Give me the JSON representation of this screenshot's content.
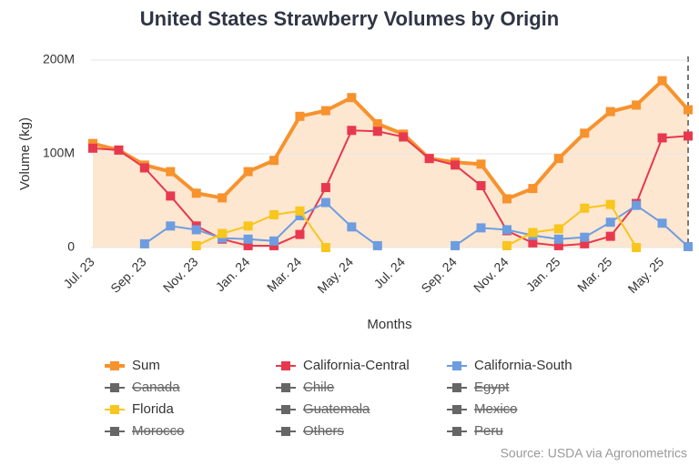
{
  "chart_data": {
    "type": "line",
    "title": "United States Strawberry Volumes by Origin",
    "x_label": "Months",
    "y_label": "Volume (kg)",
    "source": "Source: USDA via Agronometrics",
    "categories": [
      "Jul. 23",
      null,
      "Sep. 23",
      null,
      "Nov. 23",
      null,
      "Jan. 24",
      null,
      "Mar. 24",
      null,
      "May. 24",
      null,
      "Jul. 24",
      null,
      "Sep. 24",
      null,
      "Nov. 24",
      null,
      "Jan. 25",
      null,
      "Mar. 25",
      null,
      "May. 25",
      null
    ],
    "ylim": [
      0,
      200000000
    ],
    "yticks": [
      0,
      {
        "value": 100000000,
        "label": "100M"
      },
      {
        "value": 200000000,
        "label": "200M"
      }
    ],
    "grid": true,
    "series": [
      {
        "name": "Sum",
        "color": "#f7922d",
        "area": true,
        "values": [
          111000000,
          104000000,
          88000000,
          81000000,
          58000000,
          53000000,
          81000000,
          93000000,
          140000000,
          146000000,
          160000000,
          132000000,
          121000000,
          95000000,
          91000000,
          89000000,
          52000000,
          63000000,
          95000000,
          122000000,
          145000000,
          152000000,
          178000000,
          147000000
        ]
      },
      {
        "name": "California-Central",
        "color": "#e8384f",
        "values": [
          106000000,
          104000000,
          85000000,
          55000000,
          23000000,
          9000000,
          2000000,
          2000000,
          14000000,
          64000000,
          125000000,
          124000000,
          118000000,
          95000000,
          88000000,
          66000000,
          18000000,
          5000000,
          2000000,
          4000000,
          12000000,
          47000000,
          117000000,
          119000000
        ]
      },
      {
        "name": "California-South",
        "color": "#6d9de0",
        "values": [
          null,
          null,
          4000000,
          23000000,
          19000000,
          10000000,
          9000000,
          7000000,
          34000000,
          48000000,
          22000000,
          2000000,
          null,
          null,
          2000000,
          21000000,
          19000000,
          13000000,
          9000000,
          11000000,
          27000000,
          45000000,
          26000000,
          1000000
        ]
      },
      {
        "name": "Canada",
        "color": "#666666",
        "visible": false
      },
      {
        "name": "Chile",
        "color": "#666666",
        "visible": false
      },
      {
        "name": "Egypt",
        "color": "#666666",
        "visible": false
      },
      {
        "name": "Florida",
        "color": "#f8c61c",
        "values": [
          null,
          null,
          null,
          null,
          2000000,
          15000000,
          23000000,
          35000000,
          39000000,
          0,
          null,
          null,
          null,
          null,
          null,
          null,
          2000000,
          16000000,
          20000000,
          42000000,
          46000000,
          0,
          null,
          null
        ]
      },
      {
        "name": "Guatemala",
        "color": "#666666",
        "visible": false
      },
      {
        "name": "Mexico",
        "color": "#666666",
        "visible": false
      },
      {
        "name": "Morocco",
        "color": "#666666",
        "visible": false
      },
      {
        "name": "Others",
        "color": "#666666",
        "visible": false
      },
      {
        "name": "Peru",
        "color": "#666666",
        "visible": false
      }
    ]
  }
}
